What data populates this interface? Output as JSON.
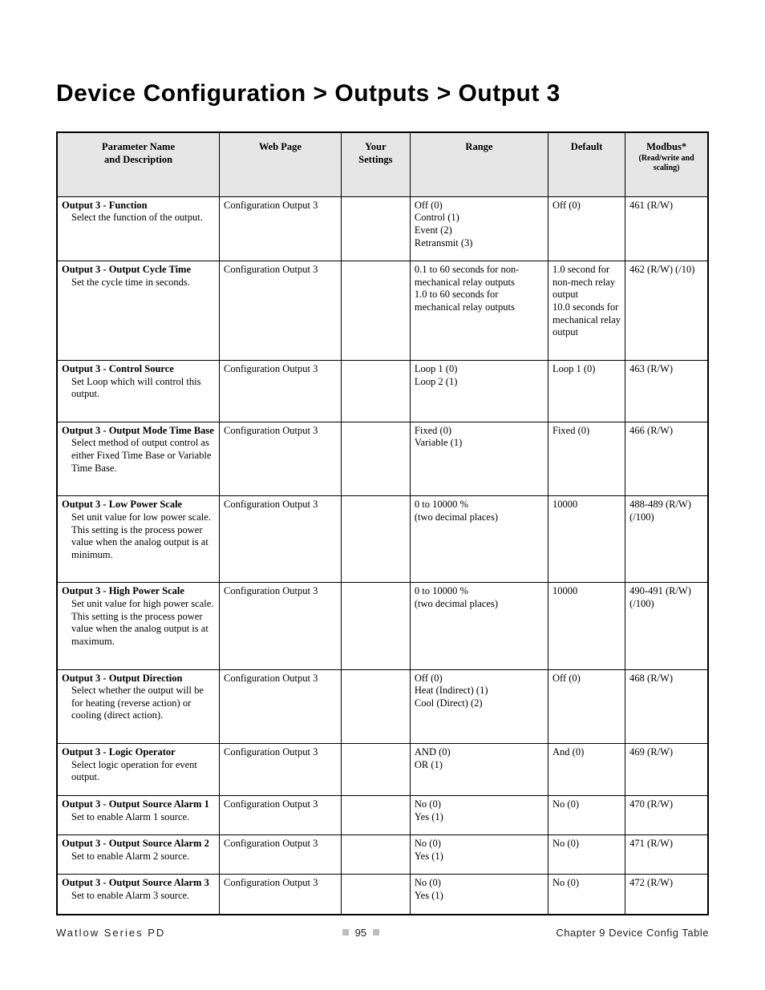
{
  "title": "Device Configuration > Outputs > Output 3",
  "columns": {
    "param": "Parameter Name\nand Description",
    "webpage": "Web Page",
    "settings": "Your\nSettings",
    "range": "Range",
    "default": "Default",
    "modbus": "Modbus*",
    "modbus_sub": "(Read/write and scaling)"
  },
  "rows": [
    {
      "name": "Output 3 - Function",
      "desc": "Select the function of the output.",
      "webpage": "Configuration Output 3",
      "range": "Off (0)\nControl (1)\nEvent (2)\nRetransmit (3)",
      "default": "Off (0)",
      "modbus": "461 (R/W)",
      "pad": "sm"
    },
    {
      "name": "Output 3 - Output Cycle Time",
      "desc": "Set the cycle time in seconds.",
      "webpage": "Configuration Output 3",
      "range": "0.1 to 60 seconds for non-mechanical relay outputs\n1.0 to 60 seconds for mechanical relay outputs",
      "default": "1.0 second for non-mech relay output\n10.0 seconds for mechanical relay output",
      "modbus": "462 (R/W) (/10)",
      "pad": "lg"
    },
    {
      "name": "Output 3 - Control Source",
      "desc": "Set Loop which will control this output.",
      "webpage": "Configuration Output 3",
      "range": "Loop 1 (0)\nLoop 2 (1)",
      "default": "Loop 1 (0)",
      "modbus": "463 (R/W)",
      "pad": "lg"
    },
    {
      "name": "Output 3 - Output Mode Time Base",
      "desc": "Select method of output control as either Fixed Time Base or Variable Time Base.",
      "webpage": "Configuration Output 3",
      "range": "Fixed (0)\nVariable (1)",
      "default": "Fixed (0)",
      "modbus": "466 (R/W)",
      "pad": "lg"
    },
    {
      "name": "Output 3 - Low Power Scale",
      "desc": "Set unit value for low power scale. This setting is the process power value when the analog output is at minimum.",
      "webpage": "Configuration Output 3",
      "range": "0 to 10000 %\n(two decimal places)",
      "default": "10000",
      "modbus": "488-489 (R/W) (/100)",
      "pad": "lg"
    },
    {
      "name": "Output 3 - High Power Scale",
      "desc": "Set unit value for high power scale. This setting is the process power value when the analog output is at maximum.",
      "webpage": "Configuration Output 3",
      "range": "0 to 10000 %\n(two decimal places)",
      "default": "10000",
      "modbus": "490-491 (R/W) (/100)",
      "pad": "lg"
    },
    {
      "name": "Output 3 - Output Direction",
      "desc": "Select whether the output will be for heating (reverse action) or cooling (direct action).",
      "webpage": "Configuration Output 3",
      "range": "Off (0)\nHeat (Indirect) (1)\nCool (Direct) (2)",
      "default": "Off (0)",
      "modbus": "468 (R/W)",
      "pad": "lg"
    },
    {
      "name": "Output 3 - Logic Operator",
      "desc": "Select logic operation for event output.",
      "webpage": "Configuration Output 3",
      "range": "AND (0)\nOR (1)",
      "default": "And (0)",
      "modbus": "469 (R/W)",
      "pad": "sm"
    },
    {
      "name": "Output 3 - Output Source Alarm 1",
      "desc": "Set to enable Alarm 1 source.",
      "webpage": "Configuration Output 3",
      "range": "No (0)\nYes (1)",
      "default": "No (0)",
      "modbus": "470 (R/W)",
      "pad": "sm"
    },
    {
      "name": "Output 3 - Output Source Alarm 2",
      "desc": "Set to enable Alarm 2 source.",
      "webpage": "Configuration Output 3",
      "range": "No (0)\nYes (1)",
      "default": "No (0)",
      "modbus": "471 (R/W)",
      "pad": "sm"
    },
    {
      "name": "Output 3 - Output Source Alarm 3",
      "desc": "Set to enable Alarm 3 source.",
      "webpage": "Configuration Output 3",
      "range": "No (0)\nYes (1)",
      "default": "No (0)",
      "modbus": "472 (R/W)",
      "pad": "sm"
    }
  ],
  "footer": {
    "left": "Watlow Series PD",
    "page": "95",
    "right": "Chapter 9 Device Config Table"
  }
}
